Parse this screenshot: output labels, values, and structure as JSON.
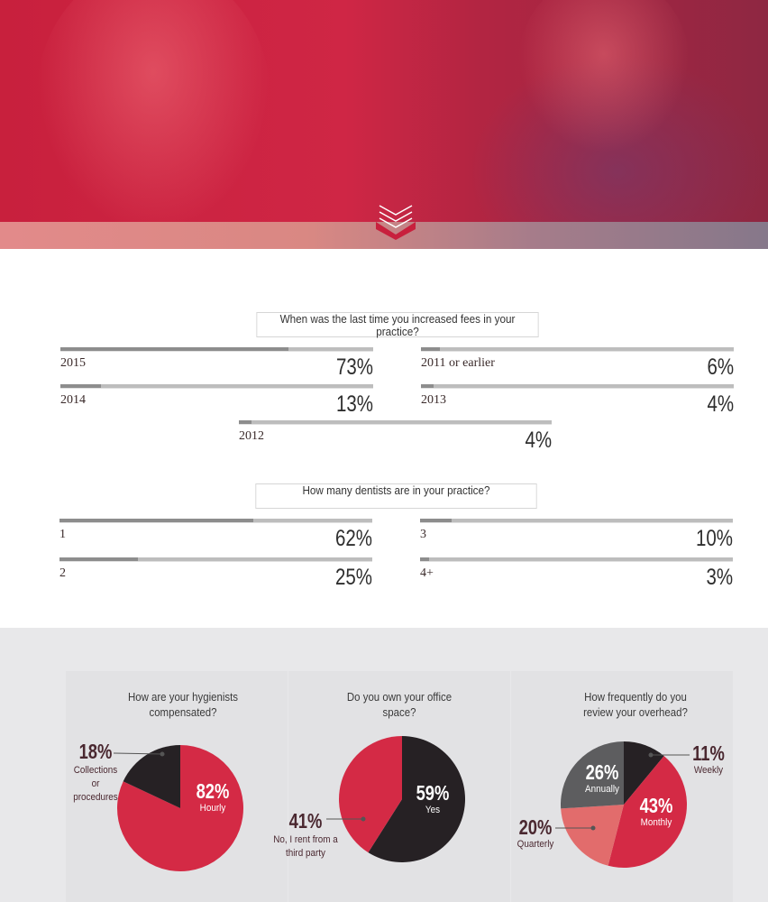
{
  "colors": {
    "red": "#d42a45",
    "black": "#262124",
    "gray": "#5d5d5f",
    "salmon": "#e26c6c"
  },
  "hero": {
    "icon": "chevron-down-icon"
  },
  "chart_data": [
    {
      "type": "bar",
      "title": "When was the last time you increased fees in your practice?",
      "categories": [
        "2015",
        "2011 or earlier",
        "2014",
        "2013",
        "2012"
      ],
      "values": [
        73,
        6,
        13,
        4,
        4
      ],
      "labels": [
        "73%",
        "6%",
        "13%",
        "4%",
        "4%"
      ],
      "unit": "%"
    },
    {
      "type": "bar",
      "title": "How many dentists are in your practice?",
      "categories": [
        "1",
        "3",
        "2",
        "4+"
      ],
      "values": [
        62,
        10,
        25,
        3
      ],
      "labels": [
        "62%",
        "10%",
        "25%",
        "3%"
      ],
      "unit": "%"
    },
    {
      "type": "pie",
      "title": "How are your hygienists compensated?",
      "slices": [
        {
          "name": "Hourly",
          "value": 82,
          "label": "82%"
        },
        {
          "name": "Collections or procedures",
          "value": 18,
          "label": "18%"
        }
      ]
    },
    {
      "type": "pie",
      "title": "Do you own your office space?",
      "slices": [
        {
          "name": "Yes",
          "value": 59,
          "label": "59%"
        },
        {
          "name": "No, I rent from a third party",
          "value": 41,
          "label": "41%"
        }
      ]
    },
    {
      "type": "pie",
      "title": "How frequently do you review your overhead?",
      "slices": [
        {
          "name": "Weekly",
          "value": 11,
          "label": "11%"
        },
        {
          "name": "Monthly",
          "value": 43,
          "label": "43%"
        },
        {
          "name": "Quarterly",
          "value": 20,
          "label": "20%"
        },
        {
          "name": "Annually",
          "value": 26,
          "label": "26%"
        }
      ]
    }
  ]
}
